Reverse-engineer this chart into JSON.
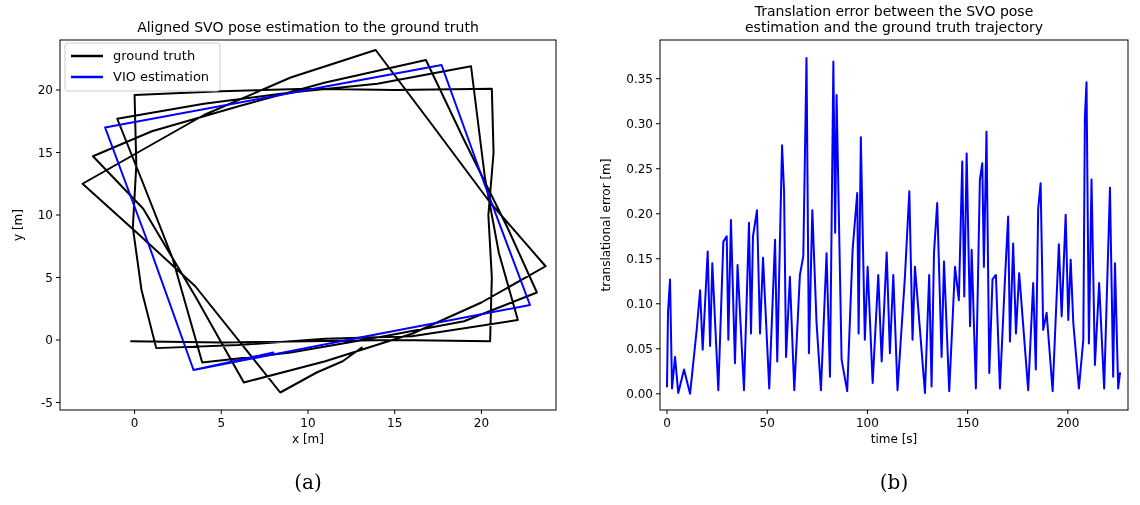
{
  "chart_data": [
    {
      "type": "line",
      "title": "Aligned SVO pose estimation to the ground truth",
      "xlabel": "x [m]",
      "ylabel": "y [m]",
      "xlim": [
        -4.3,
        24.3
      ],
      "ylim": [
        -5.6,
        24.0
      ],
      "xticks": [
        0,
        5,
        10,
        15,
        20
      ],
      "yticks": [
        -5,
        0,
        5,
        10,
        15,
        20
      ],
      "legend": "top left",
      "grid": false,
      "annotations": [
        "(a)"
      ],
      "series": [
        {
          "name": "ground truth",
          "color": "#000000",
          "x": [
            -0.2,
            5,
            10,
            15,
            20.5,
            20.6,
            20.4,
            20.7,
            20.6,
            15,
            10,
            5,
            0.0,
            0.1,
            -0.1,
            0.4,
            1.25,
            6,
            11,
            16,
            22.1,
            21.0,
            20.2,
            19.4,
            14,
            9,
            4,
            -1.0,
            0.5,
            2.2,
            3.9,
            9,
            14,
            19,
            23.2,
            21.5,
            19.0,
            16.8,
            11,
            6,
            1,
            -2.4,
            0.5,
            3.5,
            6.3,
            11,
            16,
            20,
            23.7,
            20.5,
            17.0,
            13.9,
            9,
            4,
            -3.0,
            0.2,
            3.5,
            8.4,
            10.5,
            12.0,
            13.1
          ],
          "values": [
            -0.1,
            -0.2,
            -0.1,
            0.0,
            -0.1,
            5,
            10,
            15,
            20.1,
            20.0,
            20.1,
            19.9,
            19.6,
            14,
            9,
            4,
            -0.65,
            -0.4,
            0.1,
            0.3,
            1.6,
            7,
            13,
            21.9,
            20.5,
            19.8,
            18.9,
            17.7,
            12.5,
            6.5,
            -1.8,
            -1.0,
            0.2,
            1.5,
            3.8,
            9,
            16,
            22.4,
            20.6,
            18.7,
            16.7,
            14.7,
            10.5,
            3.5,
            -3.4,
            -1.7,
            0.5,
            3.0,
            5.9,
            11,
            17.5,
            23.2,
            21.0,
            18.0,
            12.5,
            8.5,
            4.3,
            -4.2,
            -2.6,
            -1.7,
            -0.6
          ]
        },
        {
          "name": "VIO estimation",
          "color": "#0000ff",
          "x": [
            3.4,
            13,
            22.8,
            20.2,
            17.7,
            8,
            -1.7,
            0.9,
            3.4,
            8.0
          ],
          "values": [
            -2.4,
            0.2,
            2.8,
            12.4,
            22.0,
            19.5,
            17.0,
            7.3,
            -2.4,
            -1.0
          ]
        }
      ]
    },
    {
      "type": "line",
      "title": "Translation error between the SVO pose\nestimation and the ground truth trajectory",
      "xlabel": "time [s]",
      "ylabel": "translational error [m]",
      "xlim": [
        -3.5,
        230
      ],
      "ylim": [
        -0.018,
        0.393
      ],
      "xticks": [
        0,
        50,
        100,
        150,
        200
      ],
      "yticks": [
        {
          "value": 0,
          "label": "0.00"
        },
        {
          "value": 0.05,
          "label": "0.05"
        },
        {
          "value": 0.1,
          "label": "0.10"
        },
        {
          "value": 0.15,
          "label": "0.15"
        },
        {
          "value": 0.2,
          "label": "0.20"
        },
        {
          "value": 0.25,
          "label": "0.25"
        },
        {
          "value": 0.3,
          "label": "0.30"
        },
        {
          "value": 0.35,
          "label": "0.35"
        }
      ],
      "legend": false,
      "grid": false,
      "annotations": [
        "(b)"
      ],
      "series": [
        {
          "color": "#0000ff",
          "x": [
            0,
            0.5,
            1.5,
            2.5,
            4,
            5.6,
            8.5,
            11.5,
            14.8,
            16.5,
            17.8,
            20.3,
            21.5,
            22.6,
            25.6,
            28.1,
            29.8,
            30.6,
            31.9,
            33.9,
            35.2,
            38.4,
            40.9,
            41.9,
            42.9,
            44.9,
            46.4,
            47.9,
            51.0,
            53.9,
            55.0,
            57.4,
            58.4,
            59.4,
            61.3,
            63.5,
            66.3,
            68.0,
            69.6,
            70.8,
            72.5,
            74.6,
            76.8,
            79.6,
            81.3,
            83.0,
            83.9,
            84.6,
            87.1,
            89.9,
            92.6,
            94.9,
            95.6,
            96.7,
            98.7,
            100.1,
            102.6,
            105.4,
            107.1,
            109.6,
            111.2,
            112.9,
            115.0,
            118.7,
            120.9,
            122.5,
            123.7,
            128.7,
            130.8,
            132.0,
            133.2,
            134.8,
            137.0,
            138.2,
            140.8,
            143.7,
            145.6,
            147.3,
            148.3,
            149.5,
            151.2,
            152.0,
            154.1,
            156.1,
            157.3,
            158.1,
            159.4,
            160.8,
            162.4,
            164.1,
            166.1,
            168.6,
            170.2,
            171.1,
            172.7,
            174.1,
            175.7,
            180.2,
            182.7,
            184.0,
            185.2,
            186.4,
            187.7,
            189.4,
            192.4,
            195.5,
            196.9,
            198.9,
            200.2,
            201.4,
            202.7,
            205.5,
            207.7,
            208.5,
            209.3,
            210.5,
            211.8,
            213.5,
            215.6,
            218.1,
            221.0,
            222.6,
            223.5,
            225.1,
            226.0
          ],
          "values": [
            0.008,
            0.091,
            0.127,
            0.006,
            0.041,
            0.001,
            0.027,
            0.0,
            0.071,
            0.115,
            0.049,
            0.158,
            0.053,
            0.145,
            0.004,
            0.169,
            0.175,
            0.06,
            0.193,
            0.034,
            0.143,
            0.004,
            0.19,
            0.067,
            0.175,
            0.204,
            0.067,
            0.151,
            0.006,
            0.171,
            0.036,
            0.276,
            0.225,
            0.041,
            0.13,
            0.004,
            0.132,
            0.153,
            0.373,
            0.045,
            0.204,
            0.079,
            0.004,
            0.156,
            0.019,
            0.369,
            0.179,
            0.332,
            0.038,
            0.003,
            0.16,
            0.223,
            0.067,
            0.285,
            0.06,
            0.141,
            0.012,
            0.132,
            0.036,
            0.157,
            0.045,
            0.132,
            0.004,
            0.13,
            0.225,
            0.06,
            0.141,
            0.001,
            0.132,
            0.008,
            0.156,
            0.212,
            0.041,
            0.147,
            0.003,
            0.141,
            0.104,
            0.258,
            0.108,
            0.267,
            0.075,
            0.16,
            0.006,
            0.238,
            0.256,
            0.141,
            0.291,
            0.023,
            0.127,
            0.132,
            0.006,
            0.127,
            0.197,
            0.058,
            0.167,
            0.067,
            0.134,
            0.004,
            0.123,
            0.027,
            0.206,
            0.234,
            0.071,
            0.09,
            0.003,
            0.166,
            0.086,
            0.199,
            0.082,
            0.149,
            0.079,
            0.006,
            0.06,
            0.308,
            0.346,
            0.056,
            0.238,
            0.032,
            0.123,
            0.006,
            0.229,
            0.019,
            0.145,
            0.006,
            0.023
          ]
        }
      ]
    }
  ]
}
